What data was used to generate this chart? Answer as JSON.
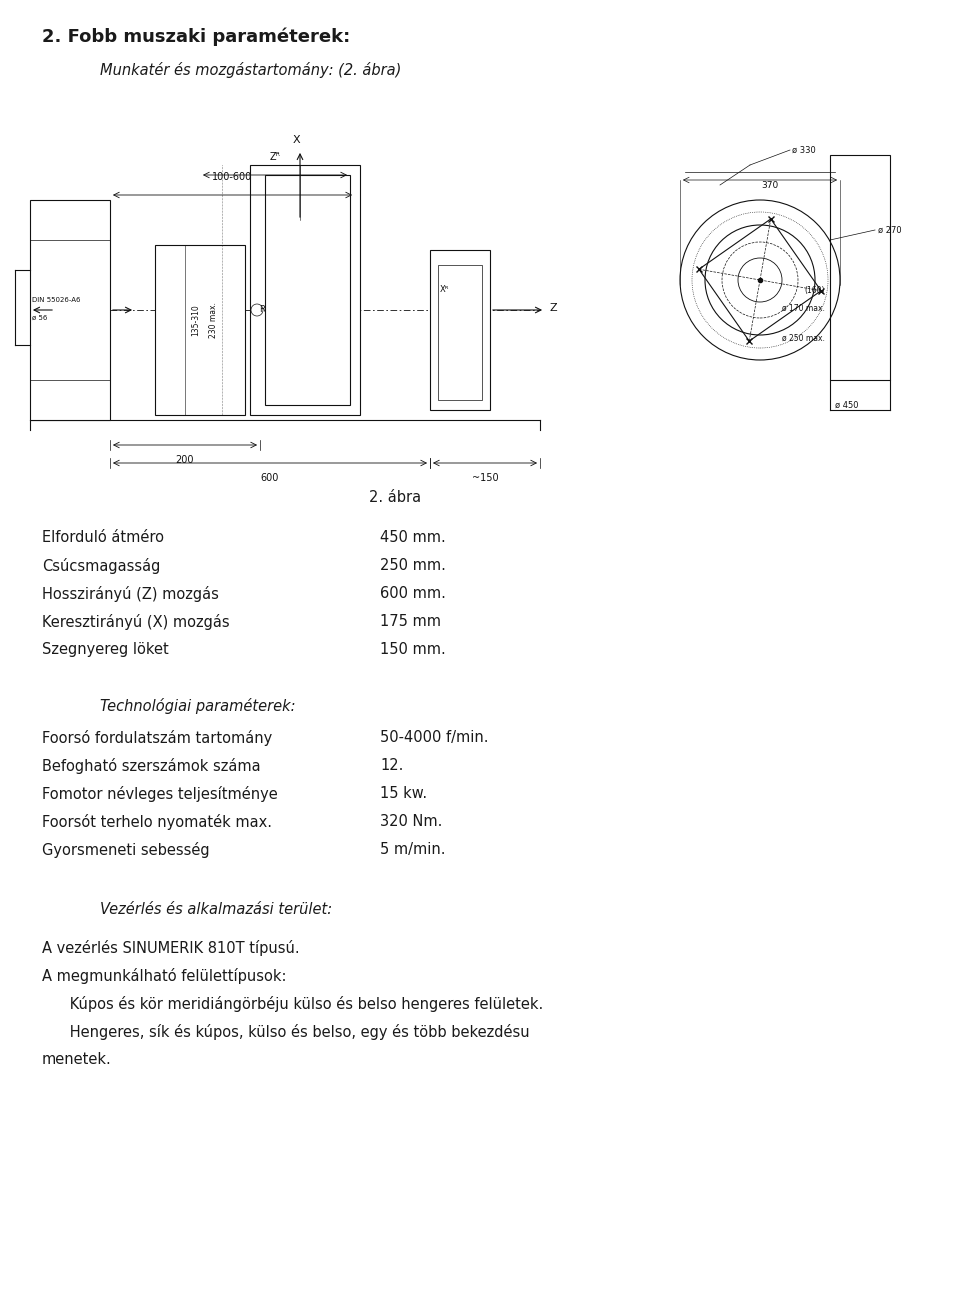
{
  "title": "2. Fobb muszaki paraméterek:",
  "subtitle_italic": "Munkatér és mozgástartomány: (2. ábra)",
  "figure_label": "2. ábra",
  "params_label": [
    "Elforduló átméro",
    "Csúcsmagasság",
    "Hosszirányú (Z) mozgás",
    "Keresztirányú (X) mozgás",
    "Szegnyereg löket"
  ],
  "params_value": [
    "450 mm.",
    "250 mm.",
    "600 mm.",
    "175 mm",
    "150 mm."
  ],
  "tech_header_italic": "Technológiai paraméterek:",
  "tech_params_label": [
    "Foorsó fordulatszám tartomány",
    "Befogható szerszámok száma",
    "Fomotor névleges teljesítménye",
    "Foorsót terhelo nyomaték max.",
    "Gyorsmeneti sebesség"
  ],
  "tech_params_value": [
    "50-4000 f/min.",
    "12.",
    "15 kw.",
    "320 Nm.",
    "5 m/min."
  ],
  "vezerlés_italic": "Vezérlés és alkalmazási terület:",
  "footer_lines": [
    "A vezérlés SINUMERIK 810T típusú.",
    "A megmunkálható felülettípusok:",
    "      Kúpos és kör meridiángörbéju külso és belso hengeres felületek.",
    "      Hengeres, sík és kúpos, külso és belso, egy és több bekezdésu",
    "menetek."
  ],
  "bg_color": "#ffffff",
  "text_color": "#1a1a1a",
  "font_size_title": 13,
  "font_size_body": 10.5,
  "font_size_italic": 10.5
}
